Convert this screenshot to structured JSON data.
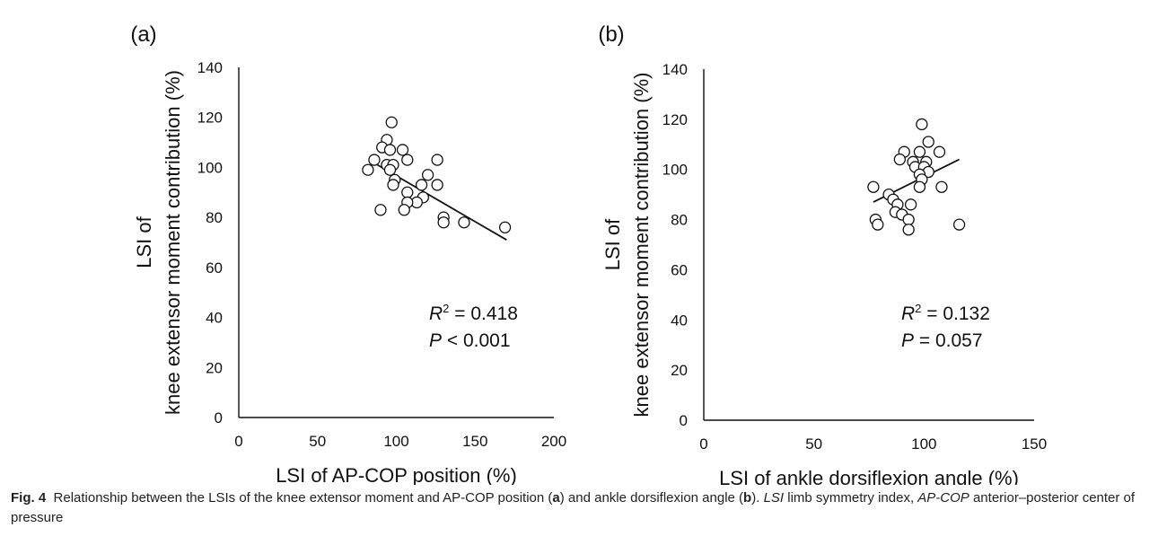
{
  "caption": {
    "fig_label": "Fig. 4",
    "p1": "Relationship between the LSIs of the knee extensor moment and AP-COP position (",
    "a": "a",
    "p2": ") and ankle dorsiflexion angle (",
    "b": "b",
    "p3": "). ",
    "abbr1": "LSI",
    "p4": " limb symmetry index, ",
    "abbr2": "AP-COP",
    "p5": " anterior–posterior center of pressure"
  },
  "chart_data": [
    {
      "type": "scatter",
      "panel": "(a)",
      "xlabel": "LSI of AP-COP position (%)",
      "ylabel_line1": "LSI of",
      "ylabel_line2": "knee extensor moment contribution (%)",
      "xlim": [
        0,
        200
      ],
      "ylim": [
        0,
        140
      ],
      "xticks": [
        0,
        50,
        100,
        150,
        200
      ],
      "yticks": [
        0,
        20,
        40,
        60,
        80,
        100,
        120,
        140
      ],
      "grid": false,
      "stat_r2_label": "R",
      "stat_r2_sup": "2",
      "stat_r2_value": " = 0.418",
      "stat_p_label": "P",
      "stat_p_value": "  < 0.001",
      "trendline": [
        [
          88,
          101
        ],
        [
          170,
          71
        ]
      ],
      "points": [
        [
          97,
          118
        ],
        [
          94,
          111
        ],
        [
          91,
          108
        ],
        [
          96,
          107
        ],
        [
          104,
          107
        ],
        [
          86,
          103
        ],
        [
          107,
          103
        ],
        [
          126,
          103
        ],
        [
          94,
          101
        ],
        [
          98,
          101
        ],
        [
          82,
          99
        ],
        [
          96,
          99
        ],
        [
          120,
          97
        ],
        [
          99,
          95
        ],
        [
          98,
          93
        ],
        [
          116,
          93
        ],
        [
          126,
          93
        ],
        [
          107,
          90
        ],
        [
          117,
          88
        ],
        [
          113,
          86
        ],
        [
          107,
          86
        ],
        [
          90,
          83
        ],
        [
          105,
          83
        ],
        [
          130,
          80
        ],
        [
          130,
          78
        ],
        [
          143,
          78
        ],
        [
          169,
          76
        ]
      ]
    },
    {
      "type": "scatter",
      "panel": "(b)",
      "xlabel": "LSI of ankle dorsiflexion angle (%)",
      "ylabel_line1": "LSI of",
      "ylabel_line2": "knee extensor moment contribution (%)",
      "xlim": [
        0,
        150
      ],
      "ylim": [
        0,
        140
      ],
      "xticks": [
        0,
        50,
        100,
        150
      ],
      "yticks": [
        0,
        20,
        40,
        60,
        80,
        100,
        120,
        140
      ],
      "grid": false,
      "stat_r2_label": "R",
      "stat_r2_sup": "2",
      "stat_r2_value": " = 0.132",
      "stat_p_label": "P",
      "stat_p_value": "  = 0.057",
      "trendline": [
        [
          77,
          87
        ],
        [
          116,
          104
        ]
      ],
      "points": [
        [
          99,
          118
        ],
        [
          102,
          111
        ],
        [
          91,
          107
        ],
        [
          98,
          107
        ],
        [
          107,
          107
        ],
        [
          89,
          104
        ],
        [
          95,
          103
        ],
        [
          101,
          103
        ],
        [
          96,
          101
        ],
        [
          100,
          101
        ],
        [
          102,
          99
        ],
        [
          98,
          98
        ],
        [
          99,
          96
        ],
        [
          98,
          93
        ],
        [
          108,
          93
        ],
        [
          77,
          93
        ],
        [
          84,
          90
        ],
        [
          86,
          88
        ],
        [
          88,
          86
        ],
        [
          94,
          86
        ],
        [
          87,
          83
        ],
        [
          90,
          82
        ],
        [
          78,
          80
        ],
        [
          93,
          80
        ],
        [
          79,
          78
        ],
        [
          116,
          78
        ],
        [
          93,
          76
        ]
      ]
    }
  ]
}
